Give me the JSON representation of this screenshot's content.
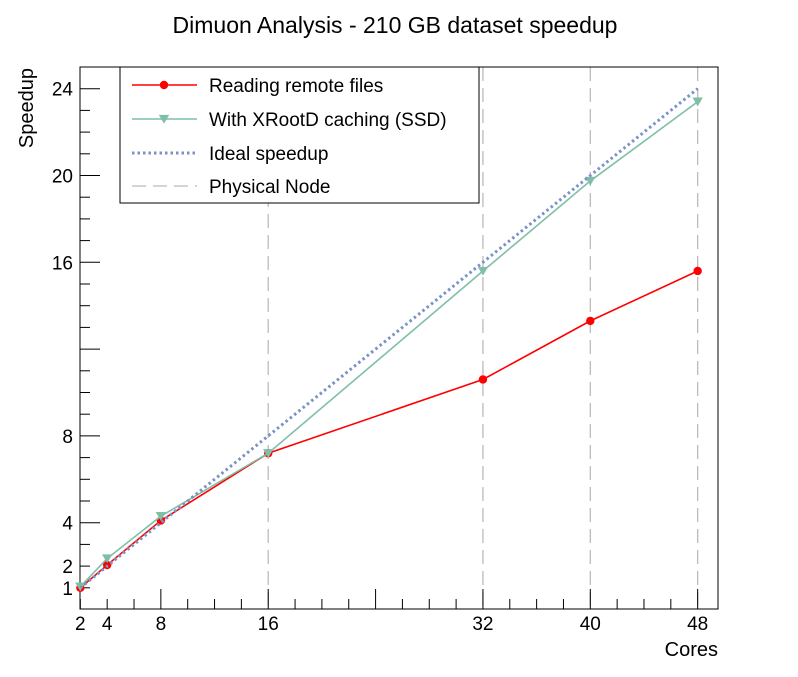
{
  "chart_data": {
    "type": "line",
    "title": "Dimuon Analysis - 210 GB dataset speedup",
    "xlabel": "Cores",
    "ylabel": "Speedup",
    "xlim": [
      0,
      50
    ],
    "ylim": [
      0,
      25
    ],
    "x_ticks": [
      2,
      4,
      8,
      16,
      32,
      40,
      48
    ],
    "y_ticks": [
      1,
      2,
      4,
      8,
      16,
      20,
      24
    ],
    "grid": false,
    "legend_position": "top-left",
    "series": [
      {
        "name": "Reading remote files",
        "color": "#ff0000",
        "marker": "circle",
        "x": [
          2,
          4,
          8,
          16,
          32,
          40,
          48
        ],
        "y": [
          1.0,
          2.05,
          4.1,
          7.2,
          10.6,
          13.3,
          15.6
        ]
      },
      {
        "name": "With XRootD caching (SSD)",
        "color": "#7fbfa8",
        "marker": "triangle-down",
        "x": [
          2,
          4,
          8,
          16,
          32,
          40,
          48
        ],
        "y": [
          1.05,
          2.35,
          4.3,
          7.2,
          15.6,
          19.75,
          23.4
        ]
      },
      {
        "name": "Ideal speedup",
        "color": "#7a92c4",
        "style": "dotted",
        "x": [
          2,
          48
        ],
        "y": [
          1,
          24
        ]
      },
      {
        "name": "Physical Node",
        "color": "#bbbbbb",
        "style": "dashed",
        "vlines": [
          16,
          32,
          40,
          48
        ]
      }
    ]
  }
}
